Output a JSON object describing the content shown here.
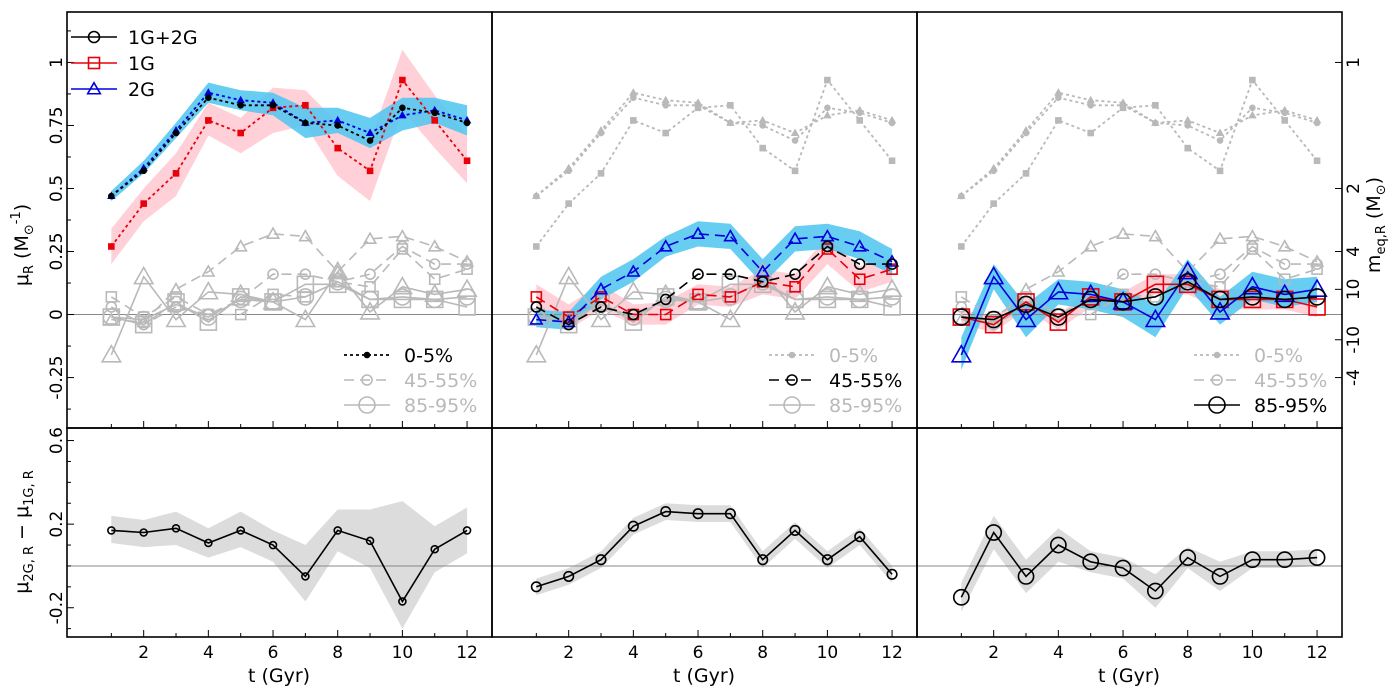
{
  "chart_data": {
    "type": "line",
    "x_values": [
      1,
      2,
      3,
      4,
      5,
      6,
      7,
      8,
      9,
      10,
      11,
      12
    ],
    "x_ticks": [
      "2",
      "4",
      "6",
      "8",
      "10",
      "12"
    ],
    "x_label": "t (Gyr)",
    "x_range": [
      0,
      12.4
    ],
    "top": {
      "y_range": [
        -0.45,
        1.2
      ],
      "y_ticks": [
        {
          "v": -0.25,
          "label": "-0.25"
        },
        {
          "v": 0,
          "label": "0"
        },
        {
          "v": 0.25,
          "label": "0.25"
        },
        {
          "v": 0.5,
          "label": "0.5"
        },
        {
          "v": 0.75,
          "label": "0.75"
        },
        {
          "v": 1,
          "label": "1"
        }
      ],
      "y_label_main": "μ",
      "y_label_sub": "R",
      "y_label_unit_pre": " (M",
      "y_label_unit_sub": "⊙",
      "y_label_unit_sup": "-1",
      "y_label_unit_post": ")",
      "right_label_main": "m",
      "right_label_sub": "eq,R",
      "right_label_unit_pre": " (M",
      "right_label_unit_sub": "⊙",
      "right_label_unit_post": ")",
      "right_ticks": [
        {
          "v": 1.0,
          "label": "1"
        },
        {
          "v": 0.5,
          "label": "2"
        },
        {
          "v": 0.25,
          "label": "4"
        },
        {
          "v": 0.1,
          "label": "10"
        },
        {
          "v": -0.1,
          "label": "-10"
        },
        {
          "v": -0.25,
          "label": "-4"
        }
      ]
    },
    "bottom": {
      "y_range": [
        -0.34,
        0.66
      ],
      "y_ticks": [
        {
          "v": -0.2,
          "label": "-0.2"
        },
        {
          "v": 0.2,
          "label": "0.2"
        },
        {
          "v": 0.6,
          "label": "0.6"
        }
      ],
      "y_label_main": "μ",
      "y_label_sub1": "2G, R",
      "y_label_mid": " − μ",
      "y_label_sub2": "1G, R"
    },
    "color_keys": [
      {
        "label": "1G+2G",
        "color": "#000000",
        "marker": "circle"
      },
      {
        "label": "1G",
        "color": "#e8000b",
        "marker": "square"
      },
      {
        "label": "2G",
        "color": "#0000dd",
        "marker": "triangle"
      }
    ],
    "style_keys": [
      "0-5%",
      "45-55%",
      "85-95%"
    ],
    "colors": {
      "grey": "#b9b9b9",
      "band_red": "#ffc0cb",
      "band_blue": "#4cc6f0",
      "band_grey": "#dcdcdc",
      "zero_line": "#888888"
    },
    "groups": [
      {
        "label": "0-5%",
        "all": [
          0.47,
          0.57,
          0.72,
          0.86,
          0.83,
          0.83,
          0.76,
          0.75,
          0.69,
          0.82,
          0.8,
          0.76
        ],
        "g1": [
          0.27,
          0.44,
          0.56,
          0.77,
          0.72,
          0.82,
          0.83,
          0.66,
          0.57,
          0.93,
          0.77,
          0.61
        ],
        "g2": [
          0.47,
          0.58,
          0.73,
          0.88,
          0.85,
          0.84,
          0.76,
          0.77,
          0.72,
          0.79,
          0.81,
          0.77
        ],
        "g1_band_lo": [
          0.2,
          0.37,
          0.47,
          0.71,
          0.64,
          0.72,
          0.75,
          0.55,
          0.45,
          0.81,
          0.66,
          0.52
        ],
        "g1_band_hi": [
          0.34,
          0.5,
          0.64,
          0.84,
          0.78,
          0.9,
          0.89,
          0.76,
          0.69,
          1.05,
          0.87,
          0.71
        ],
        "g2_band_lo": [
          0.45,
          0.56,
          0.7,
          0.84,
          0.81,
          0.79,
          0.7,
          0.72,
          0.66,
          0.73,
          0.76,
          0.71
        ],
        "g2_band_hi": [
          0.49,
          0.61,
          0.76,
          0.92,
          0.89,
          0.88,
          0.82,
          0.82,
          0.78,
          0.86,
          0.86,
          0.83
        ],
        "diff": [
          0.17,
          0.16,
          0.18,
          0.11,
          0.17,
          0.1,
          -0.05,
          0.17,
          0.12,
          -0.17,
          0.08,
          0.17
        ],
        "diff_lo": [
          0.11,
          0.09,
          0.1,
          0.04,
          0.09,
          0.02,
          -0.17,
          0.07,
          -0.01,
          -0.3,
          -0.03,
          0.06
        ],
        "diff_hi": [
          0.24,
          0.22,
          0.26,
          0.18,
          0.26,
          0.17,
          0.1,
          0.27,
          0.27,
          0.31,
          0.19,
          0.28
        ]
      },
      {
        "label": "45-55%",
        "all": [
          0.03,
          -0.04,
          0.03,
          0.0,
          0.06,
          0.16,
          0.16,
          0.13,
          0.16,
          0.27,
          0.2,
          0.2
        ],
        "g1": [
          0.07,
          -0.01,
          0.07,
          0.0,
          0.0,
          0.08,
          0.07,
          0.13,
          0.11,
          0.26,
          0.14,
          0.18
        ],
        "g2": [
          -0.02,
          -0.03,
          0.1,
          0.17,
          0.27,
          0.32,
          0.31,
          0.17,
          0.3,
          0.31,
          0.27,
          0.21
        ],
        "g1_band_lo": [
          0.01,
          -0.06,
          0.02,
          -0.04,
          -0.04,
          0.04,
          0.03,
          0.08,
          0.06,
          0.2,
          0.09,
          0.13
        ],
        "g1_band_hi": [
          0.12,
          0.04,
          0.12,
          0.04,
          0.05,
          0.12,
          0.11,
          0.18,
          0.16,
          0.31,
          0.19,
          0.23
        ],
        "g2_band_lo": [
          -0.05,
          -0.06,
          0.06,
          0.13,
          0.23,
          0.27,
          0.26,
          0.12,
          0.25,
          0.26,
          0.22,
          0.16
        ],
        "g2_band_hi": [
          0.02,
          0.01,
          0.15,
          0.22,
          0.31,
          0.37,
          0.36,
          0.22,
          0.35,
          0.36,
          0.33,
          0.26
        ],
        "diff": [
          -0.1,
          -0.05,
          0.03,
          0.19,
          0.26,
          0.25,
          0.25,
          0.03,
          0.17,
          0.03,
          0.14,
          -0.04
        ],
        "diff_lo": [
          -0.14,
          -0.09,
          -0.01,
          0.15,
          0.22,
          0.21,
          0.21,
          -0.01,
          0.13,
          -0.01,
          0.1,
          -0.08
        ],
        "diff_hi": [
          -0.06,
          -0.01,
          0.07,
          0.23,
          0.3,
          0.29,
          0.29,
          0.07,
          0.21,
          0.07,
          0.18,
          0.0
        ]
      },
      {
        "label": "85-95%",
        "all": [
          -0.01,
          -0.02,
          0.04,
          -0.01,
          0.06,
          0.05,
          0.07,
          0.13,
          0.06,
          0.07,
          0.06,
          0.07
        ],
        "g1": [
          -0.01,
          -0.04,
          0.05,
          -0.03,
          0.07,
          0.05,
          0.12,
          0.12,
          0.06,
          0.06,
          0.06,
          0.03
        ],
        "g2": [
          -0.16,
          0.15,
          -0.02,
          0.09,
          0.08,
          0.05,
          -0.02,
          0.17,
          0.01,
          0.11,
          0.08,
          0.1
        ],
        "g1_band_lo": [
          -0.04,
          -0.07,
          0.02,
          -0.06,
          0.03,
          0.01,
          0.08,
          0.08,
          0.02,
          0.02,
          0.02,
          -0.01
        ],
        "g1_band_hi": [
          0.02,
          -0.01,
          0.08,
          0.0,
          0.1,
          0.09,
          0.16,
          0.16,
          0.1,
          0.1,
          0.1,
          0.07
        ],
        "g2_band_lo": [
          -0.22,
          0.1,
          -0.09,
          0.04,
          0.02,
          -0.01,
          -0.09,
          0.11,
          -0.04,
          0.06,
          0.03,
          0.05
        ],
        "g2_band_hi": [
          -0.09,
          0.2,
          0.04,
          0.14,
          0.13,
          0.1,
          0.04,
          0.22,
          0.07,
          0.17,
          0.14,
          0.15
        ],
        "diff": [
          -0.15,
          0.16,
          -0.05,
          0.1,
          0.02,
          -0.01,
          -0.12,
          0.04,
          -0.05,
          0.03,
          0.03,
          0.04
        ],
        "diff_lo": [
          -0.22,
          0.08,
          -0.13,
          0.02,
          -0.03,
          -0.06,
          -0.2,
          -0.01,
          -0.12,
          -0.01,
          -0.01,
          0.0
        ],
        "diff_hi": [
          -0.08,
          0.24,
          0.03,
          0.18,
          0.07,
          0.04,
          -0.04,
          0.09,
          0.02,
          0.07,
          0.07,
          0.08
        ]
      }
    ]
  }
}
